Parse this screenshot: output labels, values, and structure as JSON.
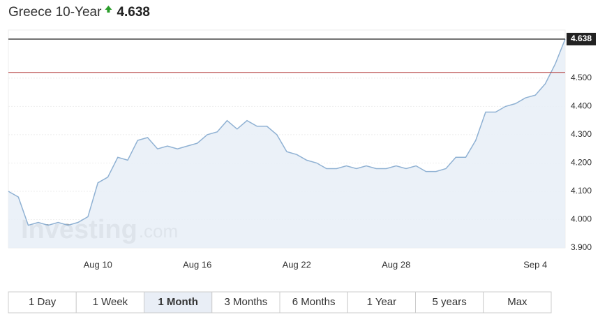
{
  "chart_data": {
    "type": "area",
    "title": "Greece 10-Year",
    "current_value": 4.638,
    "reference_line": 4.52,
    "categories": [
      null,
      null,
      null,
      null,
      null,
      null,
      null,
      null,
      null,
      "Aug 10",
      null,
      null,
      null,
      null,
      null,
      null,
      null,
      null,
      null,
      "Aug 16",
      null,
      null,
      null,
      null,
      null,
      null,
      null,
      null,
      null,
      "Aug 22",
      null,
      null,
      null,
      null,
      null,
      null,
      null,
      null,
      null,
      "Aug 28",
      null,
      null,
      null,
      null,
      null,
      null,
      null,
      null,
      null,
      null,
      null,
      null,
      null,
      "Sep 4",
      null,
      null,
      null
    ],
    "values": [
      4.1,
      4.08,
      3.98,
      3.99,
      3.98,
      3.99,
      3.98,
      3.99,
      4.01,
      4.13,
      4.15,
      4.22,
      4.21,
      4.28,
      4.29,
      4.25,
      4.26,
      4.25,
      4.26,
      4.27,
      4.3,
      4.31,
      4.35,
      4.32,
      4.35,
      4.33,
      4.33,
      4.3,
      4.24,
      4.23,
      4.21,
      4.2,
      4.18,
      4.18,
      4.19,
      4.18,
      4.19,
      4.18,
      4.18,
      4.19,
      4.18,
      4.19,
      4.17,
      4.17,
      4.18,
      4.22,
      4.22,
      4.28,
      4.38,
      4.38,
      4.4,
      4.41,
      4.43,
      4.44,
      4.48,
      4.55,
      4.638
    ],
    "color": "#8fb1d3",
    "fill": "#e7eef7",
    "ylim": [
      3.9,
      4.67
    ],
    "yticks": [
      {
        "value": 3.9,
        "label": "3.900"
      },
      {
        "value": 4.0,
        "label": "4.000"
      },
      {
        "value": 4.1,
        "label": "4.100"
      },
      {
        "value": 4.2,
        "label": "4.200"
      },
      {
        "value": 4.3,
        "label": "4.300"
      },
      {
        "value": 4.4,
        "label": "4.400"
      },
      {
        "value": 4.5,
        "label": "4.500"
      }
    ],
    "grid": true,
    "watermark": [
      "Investing",
      ".com"
    ],
    "range_buttons": [
      "1 Day",
      "1 Week",
      "1 Month",
      "3 Months",
      "6 Months",
      "1 Year",
      "5 years",
      "Max"
    ],
    "selected_range": 2
  }
}
